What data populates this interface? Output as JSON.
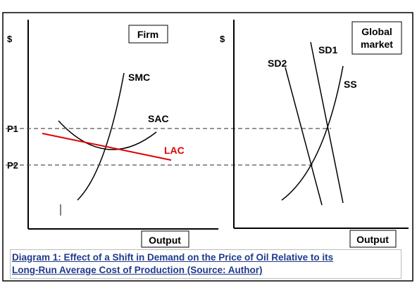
{
  "firm_panel": {
    "title": "Firm",
    "y_axis_label": "$",
    "x_axis_label": "Output",
    "price_labels": [
      "P1",
      "P2"
    ],
    "curves": {
      "smc": "SMC",
      "sac": "SAC",
      "lac": "LAC"
    }
  },
  "market_panel": {
    "title_line1": "Global",
    "title_line2": "market",
    "y_axis_label": "$",
    "x_axis_label": "Output",
    "curves": {
      "sd1": "SD1",
      "sd2": "SD2",
      "ss": "SS"
    }
  },
  "caption": {
    "line1": "Diagram 1: Effect of a Shift in Demand on the Price of Oil Relative to its",
    "line2": "Long-Run Average Cost of Production (Source: Author)"
  },
  "colors": {
    "lac": "#e00000",
    "ink": "#000000",
    "caption": "#1f3a8a"
  }
}
